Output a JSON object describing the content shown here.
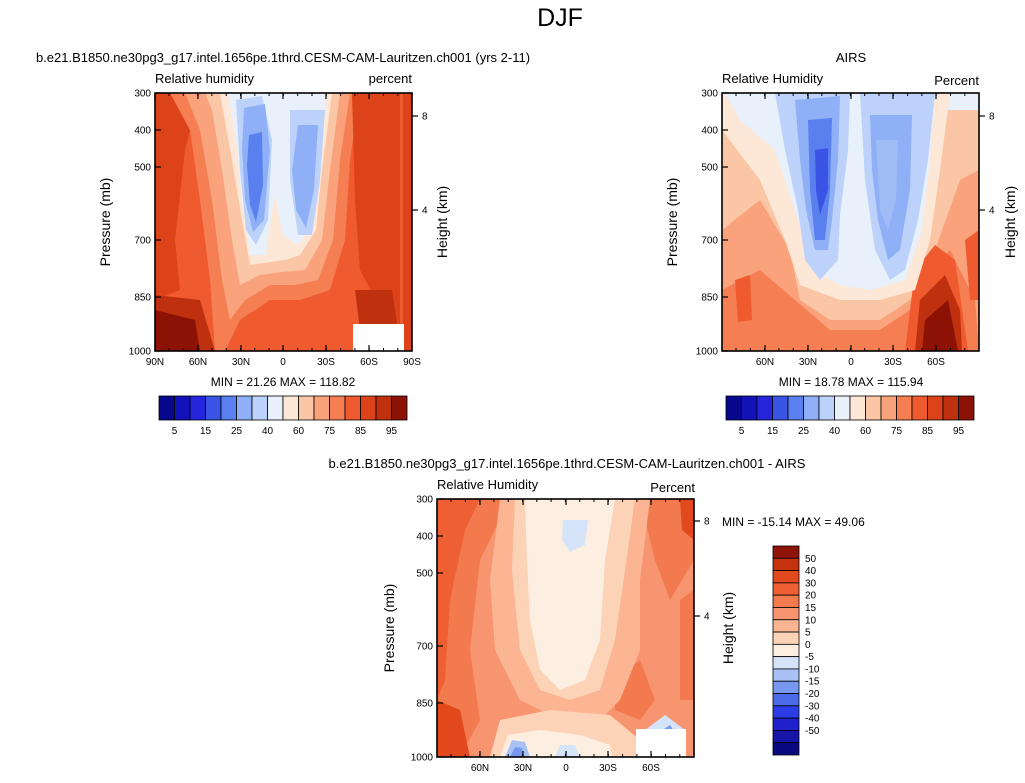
{
  "figure": {
    "title": "DJF"
  },
  "colors": {
    "abs_scale": [
      "#08088f",
      "#1212b8",
      "#2525dc",
      "#3a55e6",
      "#5a80f0",
      "#8fb0f6",
      "#bcd2fa",
      "#e8f1fb",
      "#fde8d8",
      "#fbc6a6",
      "#f9a27b",
      "#f57f53",
      "#ef5b2f",
      "#dd4319",
      "#bf300f",
      "#8c1206"
    ],
    "diff_scale": [
      "#0a0a80",
      "#1515a8",
      "#2020cc",
      "#2b3de6",
      "#4a6ae8",
      "#7898ef",
      "#a9c2f6",
      "#d6e4fa",
      "#fdeee2",
      "#fdd3b8",
      "#fbb592",
      "#f79570",
      "#f37a4f",
      "#ee5f33",
      "#e24a1e",
      "#c5330e",
      "#8f1306"
    ]
  },
  "chart_data": [
    {
      "name": "model-rh",
      "type": "contour",
      "title": "b.e21.B1850.ne30pg3_g17.intel.1656pe.1thrd.CESM-CAM-Lauritzen.ch001 (yrs 2-11)",
      "left_label": "Relative humidity",
      "right_label": "percent",
      "ylabel": "Pressure (mb)",
      "y2label": "Height (km)",
      "yticks": [
        "300",
        "400",
        "500",
        "700",
        "850",
        "1000"
      ],
      "y2ticks": [
        "8",
        "4"
      ],
      "xticks": [
        "90N",
        "60N",
        "30N",
        "0",
        "30S",
        "60S",
        "90S"
      ],
      "stats": "MIN =  21.26   MAX = 118.82",
      "colorbar_labels": [
        "5",
        "15",
        "25",
        "40",
        "60",
        "75",
        "85",
        "95"
      ],
      "min": 21.26,
      "max": 118.82
    },
    {
      "name": "airs-rh",
      "type": "contour",
      "title": "AIRS",
      "left_label": "Relative Humidity",
      "right_label": "Percent",
      "ylabel": "Pressure (mb)",
      "y2label": "Height (km)",
      "yticks": [
        "300",
        "400",
        "500",
        "700",
        "850",
        "1000"
      ],
      "y2ticks": [
        "8",
        "4"
      ],
      "xticks": [
        "60N",
        "30N",
        "0",
        "30S",
        "60S"
      ],
      "stats": "MIN =  18.78   MAX = 115.94",
      "colorbar_labels": [
        "5",
        "15",
        "25",
        "40",
        "60",
        "75",
        "85",
        "95"
      ],
      "min": 18.78,
      "max": 115.94
    },
    {
      "name": "diff-rh",
      "type": "contour",
      "title": "b.e21.B1850.ne30pg3_g17.intel.1656pe.1thrd.CESM-CAM-Lauritzen.ch001 - AIRS",
      "left_label": "Relative Humidity",
      "right_label": "Percent",
      "ylabel": "Pressure (mb)",
      "y2label": "Height (km)",
      "yticks": [
        "300",
        "400",
        "500",
        "700",
        "850",
        "1000"
      ],
      "y2ticks": [
        "8",
        "4"
      ],
      "xticks": [
        "60N",
        "30N",
        "0",
        "30S",
        "60S"
      ],
      "stats": "MIN = -15.14   MAX = 49.06",
      "colorbar_labels": [
        "50",
        "40",
        "30",
        "20",
        "15",
        "10",
        "5",
        "0",
        "-5",
        "-10",
        "-15",
        "-20",
        "-30",
        "-40",
        "-50"
      ],
      "min": -15.14,
      "max": 49.06
    }
  ]
}
